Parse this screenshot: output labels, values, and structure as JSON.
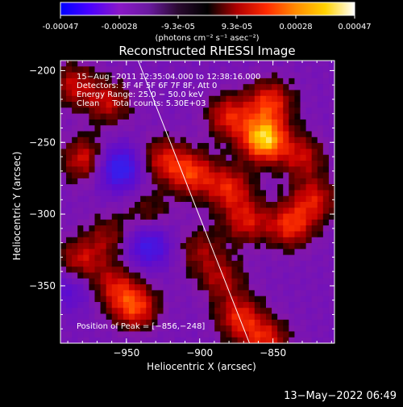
{
  "colorbar": {
    "ticks": [
      "-0.00047",
      "-0.00028",
      "-9.3e-05",
      "9.3e-05",
      "0.00028",
      "0.00047"
    ],
    "units": "(photons cm⁻² s⁻¹ asec⁻²)",
    "range": [
      -0.00047,
      0.00047
    ],
    "scale_colors": [
      "#0000ff",
      "#4b00ff",
      "#8a18c8",
      "#6a1aa0",
      "#2a0a30",
      "#000000",
      "#b00000",
      "#ff2a00",
      "#ff8c00",
      "#ffd200",
      "#ffffff"
    ]
  },
  "chart_data": {
    "type": "heatmap",
    "title": "Reconstructed RHESSI Image",
    "xlabel": "Heliocentric X (arcsec)",
    "ylabel": "Heliocentric Y (arcsec)",
    "xlim": [
      -995,
      -808
    ],
    "ylim": [
      -390,
      -193
    ],
    "x_ticks": [
      {
        "value": -950,
        "label": "−950"
      },
      {
        "value": -900,
        "label": "−900"
      },
      {
        "value": -850,
        "label": "−850"
      }
    ],
    "y_ticks": [
      {
        "value": -200,
        "label": "−200"
      },
      {
        "value": -250,
        "label": "−250"
      },
      {
        "value": -300,
        "label": "−300"
      },
      {
        "value": -350,
        "label": "−350"
      }
    ],
    "info_lines": [
      "15−Aug−2011 12:35:04.000 to 12:38:16.000",
      "Detectors: 3F 4F 5F 6F 7F 8F, Att 0",
      "Energy Range: 25.0 − 50.0 keV",
      "Clean     Total counts: 5.30E+03"
    ],
    "peak_label": "Position of Peak = [−856,−248]",
    "peak": {
      "x": -856,
      "y": -248
    },
    "limb_line": {
      "x": [
        -942,
        -866
      ],
      "y": [
        -193,
        -390
      ]
    },
    "blobs": [
      {
        "x": -856,
        "y": -248,
        "v": 1.0
      },
      {
        "x": -880,
        "y": -232,
        "v": 0.55
      },
      {
        "x": -852,
        "y": -222,
        "v": 0.6
      },
      {
        "x": -962,
        "y": -222,
        "v": 0.45
      },
      {
        "x": -978,
        "y": -262,
        "v": 0.55
      },
      {
        "x": -986,
        "y": -210,
        "v": 0.45
      },
      {
        "x": -905,
        "y": -272,
        "v": 0.6
      },
      {
        "x": -925,
        "y": -262,
        "v": 0.5
      },
      {
        "x": -880,
        "y": -282,
        "v": 0.55
      },
      {
        "x": -868,
        "y": -305,
        "v": 0.5
      },
      {
        "x": -838,
        "y": -308,
        "v": 0.6
      },
      {
        "x": -822,
        "y": -290,
        "v": 0.5
      },
      {
        "x": -830,
        "y": -260,
        "v": 0.45
      },
      {
        "x": -944,
        "y": -365,
        "v": 0.65
      },
      {
        "x": -958,
        "y": -350,
        "v": 0.45
      },
      {
        "x": -982,
        "y": -333,
        "v": 0.5
      },
      {
        "x": -962,
        "y": -316,
        "v": 0.35
      },
      {
        "x": -885,
        "y": -345,
        "v": 0.4
      },
      {
        "x": -900,
        "y": -325,
        "v": 0.35
      },
      {
        "x": -873,
        "y": -372,
        "v": 0.55
      },
      {
        "x": -855,
        "y": -388,
        "v": 0.55
      },
      {
        "x": -935,
        "y": -300,
        "v": 0.3
      },
      {
        "x": -955,
        "y": -268,
        "v": -0.75
      },
      {
        "x": -935,
        "y": -322,
        "v": -0.6
      },
      {
        "x": -988,
        "y": -352,
        "v": -0.35
      }
    ]
  },
  "timestamp": "13−May−2022 06:49"
}
